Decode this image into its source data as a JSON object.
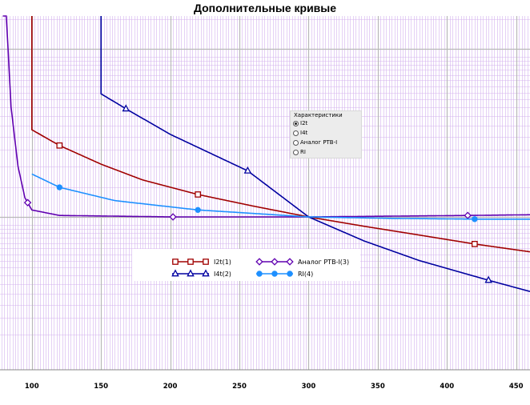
{
  "chart_data": {
    "type": "line",
    "title": "Дополнительные кривые",
    "xlabel": "",
    "ylabel": "",
    "xlim": [
      77,
      460
    ],
    "x_ticks": [
      100,
      150,
      200,
      250,
      300,
      350,
      400,
      450
    ],
    "y_scale": "log",
    "y_ticks_labeled": false,
    "grid": true,
    "legend": "bottom-center",
    "series": [
      {
        "name": "I2t(1)",
        "color": "#a00000",
        "marker": "square",
        "points": [
          [
            100,
            3.3
          ],
          [
            120,
            2.66
          ],
          [
            150,
            2.06
          ],
          [
            180,
            1.66
          ],
          [
            220,
            1.36
          ],
          [
            260,
            1.16
          ],
          [
            300,
            1.0
          ],
          [
            340,
            0.88
          ],
          [
            380,
            0.78
          ],
          [
            420,
            0.69
          ],
          [
            460,
            0.62
          ]
        ],
        "vertical_at": 100,
        "markers_at": [
          120,
          220,
          420
        ]
      },
      {
        "name": "I4t(2)",
        "color": "#0000a0",
        "marker": "triangle",
        "points": [
          [
            150,
            5.4
          ],
          [
            168,
            4.4
          ],
          [
            200,
            3.1
          ],
          [
            256,
            1.88
          ],
          [
            300,
            1.0
          ],
          [
            340,
            0.72
          ],
          [
            380,
            0.55
          ],
          [
            430,
            0.42
          ],
          [
            460,
            0.36
          ]
        ],
        "vertical_at": 150,
        "markers_at": [
          168,
          256,
          430
        ]
      },
      {
        "name": "Аналог РТВ-I(3)",
        "color": "#6000b0",
        "marker": "diamond",
        "points": [
          [
            79,
            40
          ],
          [
            85,
            4.5
          ],
          [
            90,
            2.0
          ],
          [
            95,
            1.3
          ],
          [
            100,
            1.1
          ],
          [
            120,
            1.02
          ],
          [
            202,
            1.0
          ],
          [
            300,
            1.0
          ],
          [
            415,
            1.02
          ],
          [
            460,
            1.03
          ]
        ],
        "markers_at": [
          97,
          202,
          415
        ]
      },
      {
        "name": "RI(4)",
        "color": "#1e90ff",
        "marker": "circle",
        "points": [
          [
            100,
            1.8
          ],
          [
            120,
            1.5
          ],
          [
            160,
            1.25
          ],
          [
            220,
            1.1
          ],
          [
            300,
            1.0
          ],
          [
            360,
            0.98
          ],
          [
            420,
            0.97
          ],
          [
            460,
            0.97
          ]
        ],
        "markers_at": [
          120,
          220,
          420
        ]
      }
    ]
  },
  "panel": {
    "title": "Характеристики",
    "options": [
      "I2t",
      "I4t",
      "Аналог РТВ-I",
      "RI"
    ],
    "selected": "I2t"
  },
  "colors": {
    "grid_minor": "#d4b2ee",
    "grid_major": "#b8b8b8"
  }
}
